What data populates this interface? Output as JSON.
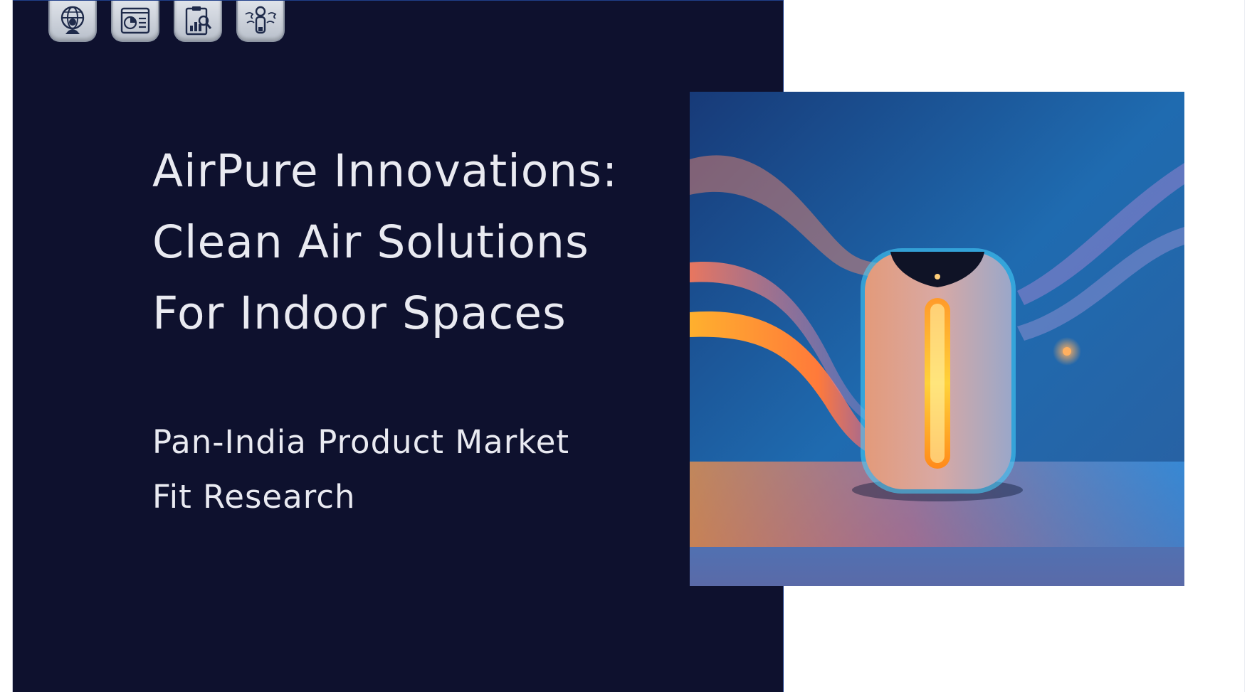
{
  "slide": {
    "title_line1": "AirPure Innovations:",
    "title_line2": "Clean Air Solutions",
    "title_line3": "For Indoor Spaces",
    "subtitle_line1": "Pan-India Product Market",
    "subtitle_line2": "Fit Research"
  },
  "toolbar": {
    "icons": [
      "globe-person-icon",
      "chart-list-icon",
      "clipboard-chart-search-icon",
      "person-airflow-icon"
    ]
  },
  "colors": {
    "panel_background": "#0e112e",
    "text": "#e9eaf1",
    "accent_blue": "#1f3f8a",
    "accent_orange": "#ff8a2a"
  },
  "hero_image": {
    "subject": "air-purifier-product-image"
  }
}
